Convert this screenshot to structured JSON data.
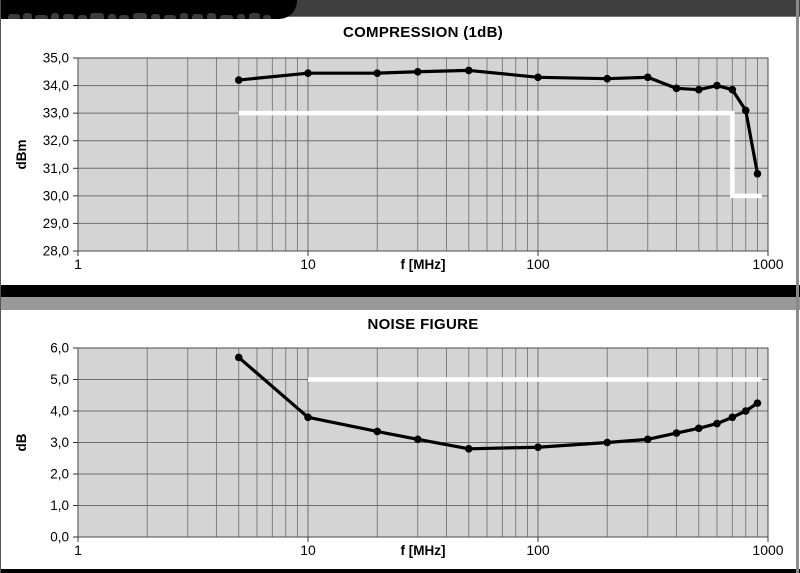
{
  "banner": {
    "bar_color": "#3f3f3f",
    "tab_color": "#000000"
  },
  "separator": {
    "black": "#000000",
    "gray": "#999999"
  },
  "chart_data": [
    {
      "type": "line",
      "title": "COMPRESSION (1dB)",
      "xlabel": "f [MHz]",
      "ylabel": "dBm",
      "x_scale": "log",
      "xlim": [
        1,
        1000
      ],
      "ylim": [
        28,
        35
      ],
      "y_step": 1,
      "x_ticks": [
        "1",
        "10",
        "100",
        "1000"
      ],
      "y_ticks": [
        "35,0",
        "34,0",
        "33,0",
        "32,0",
        "31,0",
        "30,0",
        "29,0",
        "28,0"
      ],
      "grid": "log-x-major-minor, y-major",
      "legend": "none",
      "x": [
        5,
        10,
        20,
        30,
        50,
        100,
        200,
        300,
        400,
        500,
        600,
        700,
        800,
        900
      ],
      "values": [
        34.2,
        34.45,
        34.45,
        34.5,
        34.55,
        34.3,
        34.25,
        34.3,
        33.9,
        33.85,
        34.0,
        33.85,
        33.1,
        30.8
      ],
      "series_color": "#000000",
      "limit_line": {
        "color": "#ffffff",
        "points": [
          [
            5,
            33
          ],
          [
            700,
            33
          ],
          [
            700,
            30
          ],
          [
            940,
            30
          ]
        ]
      },
      "plot_bg": "#d4d4d4",
      "grid_color": "#808080"
    },
    {
      "type": "line",
      "title": "NOISE FIGURE",
      "xlabel": "f [MHz]",
      "ylabel": "dB",
      "x_scale": "log",
      "xlim": [
        1,
        1000
      ],
      "ylim": [
        0,
        6
      ],
      "y_step": 1,
      "x_ticks": [
        "1",
        "10",
        "100",
        "1000"
      ],
      "y_ticks": [
        "6,0",
        "5,0",
        "4,0",
        "3,0",
        "2,0",
        "1,0",
        "0,0"
      ],
      "grid": "log-x-major-minor, y-major",
      "legend": "none",
      "x": [
        5,
        10,
        20,
        30,
        50,
        100,
        200,
        300,
        400,
        500,
        600,
        700,
        800,
        900
      ],
      "values": [
        5.7,
        3.8,
        3.35,
        3.1,
        2.8,
        2.85,
        3.0,
        3.1,
        3.3,
        3.45,
        3.6,
        3.8,
        4.0,
        4.25
      ],
      "series_color": "#000000",
      "limit_line": {
        "color": "#ffffff",
        "points": [
          [
            10,
            5
          ],
          [
            940,
            5
          ]
        ]
      },
      "plot_bg": "#d4d4d4",
      "grid_color": "#808080"
    }
  ]
}
